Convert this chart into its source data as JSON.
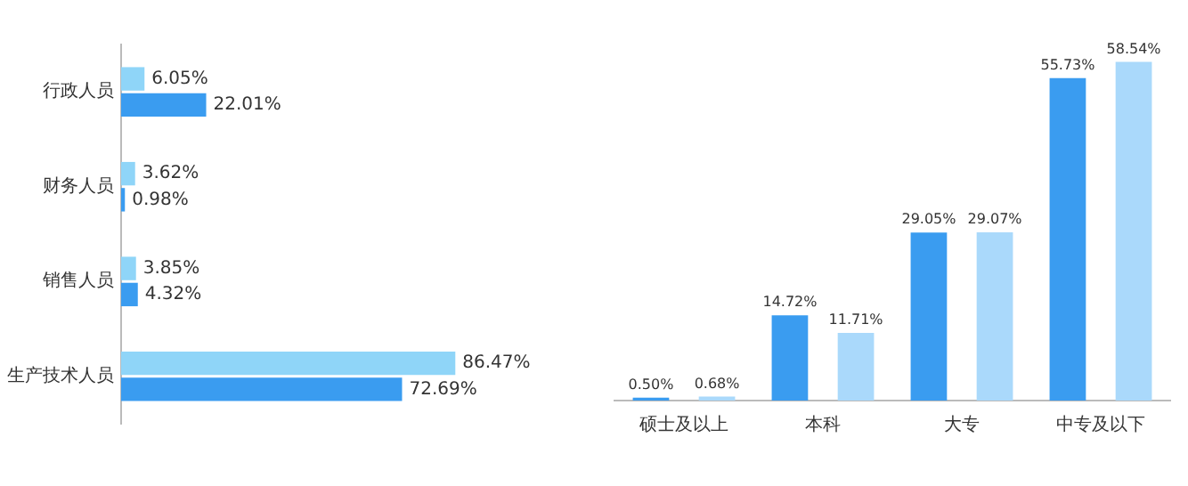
{
  "chart_data": [
    {
      "type": "bar",
      "orientation": "horizontal",
      "categories": [
        "行政人员",
        "财务人员",
        "销售人员",
        "生产技术人员"
      ],
      "series": [
        {
          "color": "#8fd5f8",
          "values": [
            6.05,
            3.62,
            3.85,
            86.47
          ],
          "value_labels": [
            "6.05%",
            "3.62%",
            "3.85%",
            "86.47%"
          ]
        },
        {
          "color": "#3a9cf0",
          "values": [
            22.01,
            0.98,
            4.32,
            72.69
          ],
          "value_labels": [
            "22.01%",
            "0.98%",
            "4.32%",
            "72.69%"
          ]
        }
      ],
      "grid": false,
      "legend": false
    },
    {
      "type": "bar",
      "categories": [
        "硕士及以上",
        "本科",
        "大专",
        "中专及以下"
      ],
      "series": [
        {
          "color": "#3a9cf0",
          "values": [
            0.5,
            14.72,
            29.05,
            55.73
          ],
          "value_labels": [
            "0.50%",
            "14.72%",
            "29.05%",
            "55.73%"
          ]
        },
        {
          "color": "#aad9fb",
          "values": [
            0.68,
            11.71,
            29.07,
            58.54
          ],
          "value_labels": [
            "0.68%",
            "11.71%",
            "29.07%",
            "58.54%"
          ]
        }
      ],
      "grid": false,
      "legend": false
    }
  ]
}
